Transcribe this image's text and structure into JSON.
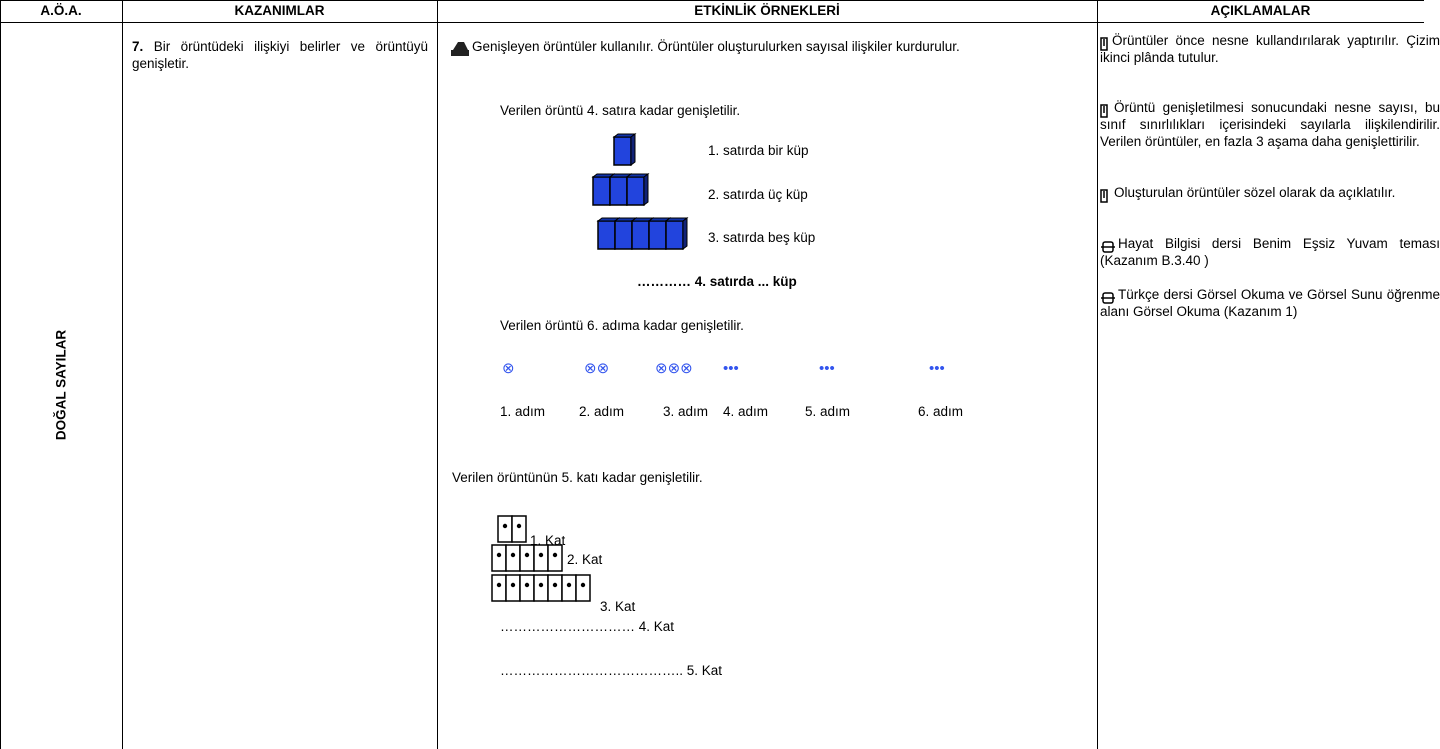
{
  "header": {
    "columns": [
      "A.Ö.A.",
      "KAZANIMLAR",
      "ETKİNLİK ÖRNEKLERİ",
      "AÇIKLAMALAR"
    ]
  },
  "row": {
    "aoa": "DOĞAL SAYILAR",
    "kazanim": {
      "number": "7.",
      "text": "Bir örüntüdeki ilişkiyi belirler ve örüntüyü genişletir."
    },
    "etkinlik": {
      "intro": "Genişleyen örüntüler kullanılır. Örüntüler oluşturulurken sayısal ilişkiler kurdurulur.",
      "example1": {
        "prompt": "Verilen örüntü 4. satıra kadar genişletilir.",
        "rows": [
          "1. satırda bir  küp",
          "2. satırda üç küp",
          "3. satırda beş küp",
          "………… 4. satırda ... küp"
        ]
      },
      "example2": {
        "prompt": "Verilen örüntü 6. adıma kadar genişletilir.",
        "symbols": [
          "⊗",
          "⊗⊗",
          "⊗⊗⊗",
          "•••",
          "•••",
          "•••"
        ],
        "steps": [
          "1. adım",
          "2. adım",
          "3. adım",
          "4. adım",
          "5. adım",
          "6. adım"
        ]
      },
      "example3": {
        "prompt": "Verilen örüntünün 5. katı kadar genişletilir.",
        "floors": [
          "1. Kat",
          "2. Kat",
          "3. Kat",
          "………………………… 4. Kat",
          "………………………………….. 5. Kat"
        ]
      }
    },
    "aciklamalar": [
      "Örüntüler önce nesne kullandırılarak yaptırılır. Çizim ikinci plânda tutulur.",
      "Örüntü genişletilmesi sonucundaki nesne sayısı, bu sınıf sınırlılıkları içerisindeki sayılarla ilişkilendirilir. Verilen örüntüler, en fazla 3 aşama daha genişlettirilir.",
      "Oluşturulan örüntüler sözel olarak da açıklatılır.",
      "Hayat Bilgisi dersi  Benim Eşsiz Yuvam teması (Kazanım B.3.40 )",
      "Türkçe dersi Görsel Okuma ve Görsel Sunu öğrenme alanı Görsel Okuma (Kazanım 1)"
    ]
  }
}
